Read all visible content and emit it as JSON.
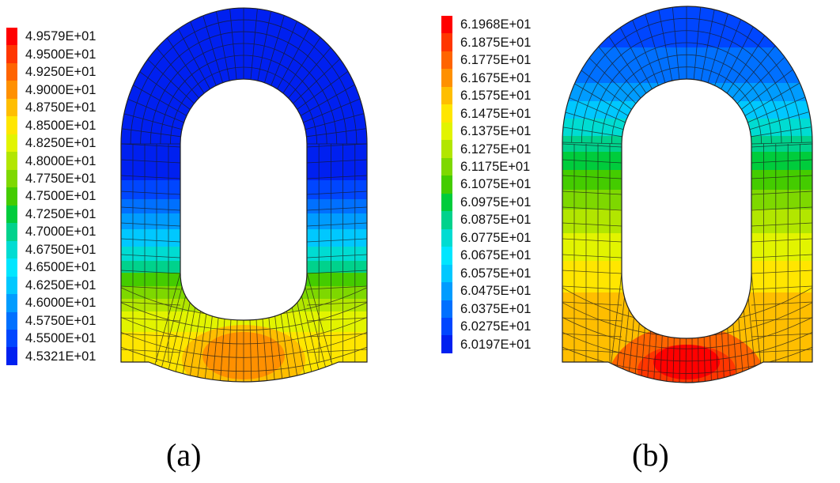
{
  "panels": [
    {
      "caption": "(a)",
      "legend": [
        "4.9579E+01",
        "4.9500E+01",
        "4.9250E+01",
        "4.9000E+01",
        "4.8750E+01",
        "4.8500E+01",
        "4.8250E+01",
        "4.8000E+01",
        "4.7750E+01",
        "4.7500E+01",
        "4.7250E+01",
        "4.7000E+01",
        "4.6750E+01",
        "4.6500E+01",
        "4.6250E+01",
        "4.6000E+01",
        "4.5750E+01",
        "4.5500E+01",
        "4.5321E+01"
      ],
      "legend_colors": [
        "#ff0000",
        "#ff3600",
        "#ff6400",
        "#ff9000",
        "#ffbe00",
        "#ffe600",
        "#e2f400",
        "#b2e600",
        "#7ed800",
        "#44cc00",
        "#00cc3c",
        "#00d28c",
        "#00dcd2",
        "#00e6ff",
        "#00c8ff",
        "#009cff",
        "#0070ff",
        "#0046ff",
        "#0020f0"
      ],
      "bands": [
        {
          "y_from": 0,
          "y_to": 228,
          "color": "#0020f0"
        },
        {
          "y_from": 228,
          "y_to": 252,
          "color": "#0046ff"
        },
        {
          "y_from": 252,
          "y_to": 270,
          "color": "#0070ff"
        },
        {
          "y_from": 270,
          "y_to": 290,
          "color": "#009cff"
        },
        {
          "y_from": 290,
          "y_to": 312,
          "color": "#00c8ff"
        },
        {
          "y_from": 312,
          "y_to": 330,
          "color": "#00dcd2"
        },
        {
          "y_from": 330,
          "y_to": 345,
          "color": "#00d28c"
        },
        {
          "y_from": 345,
          "y_to": 362,
          "color": "#44cc00"
        },
        {
          "y_from": 362,
          "y_to": 378,
          "color": "#7ed800"
        },
        {
          "y_from": 378,
          "y_to": 394,
          "color": "#b2e600"
        },
        {
          "y_from": 394,
          "y_to": 420,
          "color": "#e2f400"
        },
        {
          "y_from": 420,
          "y_to": 500,
          "color": "#ffe600"
        }
      ],
      "blobs": [
        {
          "color": "#ffbe00",
          "rx": 78,
          "ry": 44,
          "dy": 50
        },
        {
          "color": "#ff9000",
          "rx": 52,
          "ry": 30,
          "dy": 45
        }
      ]
    },
    {
      "caption": "(b)",
      "legend": [
        "6.1968E+01",
        "6.1875E+01",
        "6.1775E+01",
        "6.1675E+01",
        "6.1575E+01",
        "6.1475E+01",
        "6.1375E+01",
        "6.1275E+01",
        "6.1175E+01",
        "6.1075E+01",
        "6.0975E+01",
        "6.0875E+01",
        "6.0775E+01",
        "6.0675E+01",
        "6.0575E+01",
        "6.0475E+01",
        "6.0375E+01",
        "6.0275E+01",
        "6.0197E+01"
      ],
      "legend_colors": [
        "#ff0000",
        "#ff3600",
        "#ff6400",
        "#ff9000",
        "#ffbe00",
        "#ffe600",
        "#e2f400",
        "#b2e600",
        "#7ed800",
        "#44cc00",
        "#00cc3c",
        "#00d28c",
        "#00dcd2",
        "#00e6ff",
        "#00c8ff",
        "#009cff",
        "#0070ff",
        "#0046ff",
        "#0020f0"
      ],
      "bands": [
        {
          "y_from": 0,
          "y_to": 60,
          "color": "#0046ff"
        },
        {
          "y_from": 60,
          "y_to": 105,
          "color": "#0070ff"
        },
        {
          "y_from": 105,
          "y_to": 128,
          "color": "#009cff"
        },
        {
          "y_from": 128,
          "y_to": 150,
          "color": "#00c8ff"
        },
        {
          "y_from": 150,
          "y_to": 172,
          "color": "#00dcd2"
        },
        {
          "y_from": 172,
          "y_to": 192,
          "color": "#00d28c"
        },
        {
          "y_from": 192,
          "y_to": 215,
          "color": "#00cc3c"
        },
        {
          "y_from": 215,
          "y_to": 240,
          "color": "#44cc00"
        },
        {
          "y_from": 240,
          "y_to": 265,
          "color": "#7ed800"
        },
        {
          "y_from": 265,
          "y_to": 295,
          "color": "#b2e600"
        },
        {
          "y_from": 295,
          "y_to": 330,
          "color": "#e2f400"
        },
        {
          "y_from": 330,
          "y_to": 370,
          "color": "#ffe600"
        },
        {
          "y_from": 370,
          "y_to": 500,
          "color": "#ffbe00"
        }
      ],
      "blobs": [
        {
          "color": "#ff6400",
          "rx": 100,
          "ry": 72,
          "dy": 55
        },
        {
          "color": "#ff3600",
          "rx": 62,
          "ry": 32,
          "dy": 40
        },
        {
          "color": "#ff0000",
          "rx": 42,
          "ry": 22,
          "dy": 30
        }
      ]
    }
  ]
}
